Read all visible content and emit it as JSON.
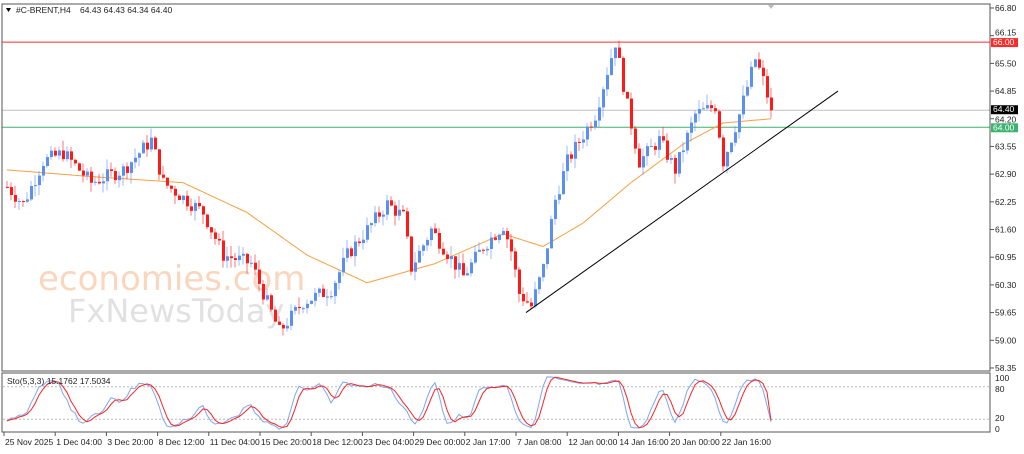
{
  "header": {
    "symbol_label": "#C-BRENT,H4",
    "ohlc": "64.43 64.43 64.34 64.40"
  },
  "watermark": {
    "line1": "economies.com",
    "line2": "FxNewsToday"
  },
  "colors": {
    "bull": "#5b8ff2",
    "bear": "#ff1a1a",
    "ma": "#f5a142",
    "resistance": "#ff2a2a",
    "support": "#3cb371",
    "price_line": "#c0c0c0",
    "stoch_main": "#7aa6f5",
    "stoch_signal": "#ff2020"
  },
  "chart_data": {
    "type": "candlestick",
    "title": "#C-BRENT,H4",
    "ylim": [
      58.35,
      66.8
    ],
    "price_ticks": [
      "66.80",
      "66.15",
      "65.50",
      "64.85",
      "64.20",
      "63.55",
      "62.90",
      "62.25",
      "61.60",
      "60.95",
      "60.30",
      "59.65",
      "59.00",
      "58.35"
    ],
    "time_labels": [
      "25 Nov 2025",
      "1 Dec 04:00",
      "3 Dec 20:00",
      "8 Dec 12:00",
      "11 Dec 04:00",
      "15 Dec 20:00",
      "18 Dec 12:00",
      "23 Dec 04:00",
      "29 Dec 00:00",
      "2 Jan 17:00",
      "7 Jan 08:00",
      "12 Jan 00:00",
      "14 Jan 16:00",
      "20 Jan 00:00",
      "22 Jan 16:00"
    ],
    "price_path": [
      [
        0,
        62.6
      ],
      [
        4,
        62.2
      ],
      [
        9,
        63.2
      ],
      [
        14,
        63.4
      ],
      [
        21,
        62.7
      ],
      [
        29,
        63.0
      ],
      [
        36,
        63.7
      ],
      [
        39,
        62.7
      ],
      [
        49,
        62.0
      ],
      [
        54,
        61.0
      ],
      [
        61,
        60.8
      ],
      [
        68,
        59.2
      ],
      [
        74,
        59.9
      ],
      [
        81,
        60.2
      ],
      [
        85,
        61.0
      ],
      [
        95,
        62.2
      ],
      [
        99,
        61.9
      ],
      [
        101,
        60.7
      ],
      [
        106,
        61.6
      ],
      [
        114,
        60.5
      ],
      [
        119,
        61.2
      ],
      [
        124,
        61.7
      ],
      [
        126,
        61.1
      ],
      [
        128,
        60.1
      ],
      [
        131,
        59.8
      ],
      [
        134,
        60.7
      ],
      [
        137,
        62.3
      ],
      [
        140,
        63.2
      ],
      [
        147,
        64.3
      ],
      [
        152,
        66.0
      ],
      [
        155,
        64.5
      ],
      [
        158,
        63.2
      ],
      [
        163,
        63.7
      ],
      [
        167,
        63.0
      ],
      [
        172,
        64.3
      ],
      [
        177,
        64.5
      ],
      [
        179,
        63.2
      ],
      [
        183,
        64.3
      ],
      [
        187,
        65.6
      ],
      [
        189,
        65.1
      ],
      [
        191,
        64.4
      ]
    ],
    "moving_average": [
      [
        0,
        63.0
      ],
      [
        20,
        62.85
      ],
      [
        44,
        62.7
      ],
      [
        60,
        62.0
      ],
      [
        75,
        61.0
      ],
      [
        90,
        60.35
      ],
      [
        107,
        60.8
      ],
      [
        124,
        61.5
      ],
      [
        134,
        61.2
      ],
      [
        144,
        61.75
      ],
      [
        156,
        62.7
      ],
      [
        169,
        63.6
      ],
      [
        179,
        64.1
      ],
      [
        191,
        64.2
      ]
    ],
    "last_price": "64.40",
    "current_label": "64.40",
    "levels": [
      {
        "name": "resistance",
        "value": "66.00"
      },
      {
        "name": "support",
        "value": "64.00"
      }
    ],
    "trendline": {
      "start": [
        130,
        59.65
      ],
      "end": [
        208,
        64.85
      ]
    },
    "stochastic": {
      "label": "Sto(5,3,3)",
      "main_value": "15.1762",
      "signal_value": "17.5034",
      "levels": [
        "80",
        "20"
      ],
      "scale": [
        "100",
        "0"
      ]
    }
  }
}
